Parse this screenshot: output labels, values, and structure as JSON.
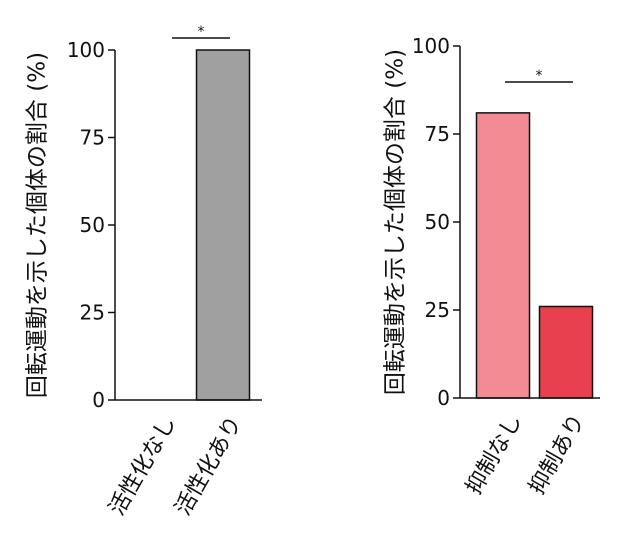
{
  "chart_data": [
    {
      "type": "bar",
      "y_label": "回転運動を示した個体の割合 (%)",
      "categories": [
        "活性化なし",
        "活性化あり"
      ],
      "values": [
        0,
        100
      ],
      "colors": [
        "#a0a0a0",
        "#a0a0a0"
      ],
      "ylim": [
        0,
        100
      ],
      "yticks": [
        0,
        25,
        50,
        75,
        100
      ],
      "annotation": "*"
    },
    {
      "type": "bar",
      "y_label": "回転運動を示した個体の割合 (%)",
      "categories": [
        "抑制なし",
        "抑制あり"
      ],
      "values": [
        81,
        26
      ],
      "colors": [
        "#f28b94",
        "#e8404f"
      ],
      "ylim": [
        0,
        100
      ],
      "yticks": [
        0,
        25,
        50,
        75,
        100
      ],
      "annotation": "*"
    }
  ]
}
